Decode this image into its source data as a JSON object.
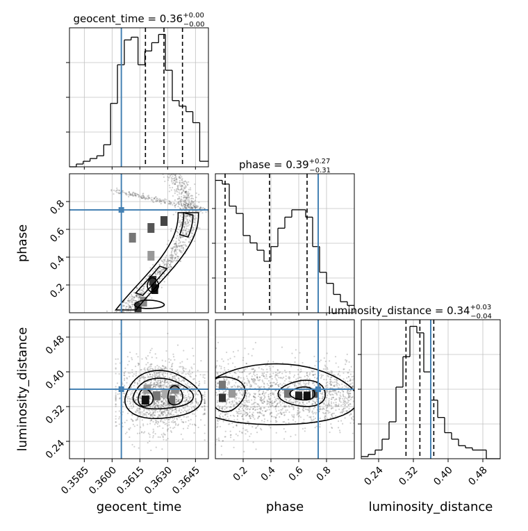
{
  "chart_data": {
    "type": "corner",
    "parameters": [
      {
        "name": "geocent_time",
        "axis_label": "geocent_time",
        "title": {
          "main": "geocent_time = 0.36",
          "plus": "+0.00",
          "minus": "−0.00"
        },
        "range": [
          0.3577,
          0.3652
        ],
        "ticks": [
          0.3585,
          0.36,
          0.3615,
          0.363,
          0.3645
        ],
        "tick_labels": [
          "0.3585",
          "0.3600",
          "0.3615",
          "0.3630",
          "0.3645"
        ],
        "injection": 0.3605,
        "quantiles": [
          0.3618,
          0.3628,
          0.3638
        ],
        "hist_edges": [
          0.3577,
          0.35807,
          0.35844,
          0.35881,
          0.35918,
          0.35955,
          0.35992,
          0.36029,
          0.36066,
          0.36103,
          0.3614,
          0.36177,
          0.36214,
          0.36251,
          0.36288,
          0.36325,
          0.36362,
          0.36399,
          0.36436,
          0.36473,
          0.3652
        ],
        "hist_counts": [
          0,
          1,
          2,
          3,
          4,
          8,
          23,
          37,
          46,
          47,
          37,
          42,
          45,
          48,
          35,
          24,
          22,
          20,
          16,
          2
        ]
      },
      {
        "name": "phase",
        "axis_label": "phase",
        "title": {
          "main": "phase = 0.39",
          "plus": "+0.27",
          "minus": "−0.31"
        },
        "range": [
          0.0,
          1.0
        ],
        "ticks": [
          0.2,
          0.4,
          0.6,
          0.8
        ],
        "tick_labels": [
          "0.2",
          "0.4",
          "0.6",
          "0.8"
        ],
        "injection": 0.74,
        "quantiles": [
          0.07,
          0.39,
          0.66
        ],
        "hist_edges": [
          0.0,
          0.05,
          0.1,
          0.15,
          0.2,
          0.25,
          0.3,
          0.35,
          0.4,
          0.45,
          0.5,
          0.55,
          0.6,
          0.65,
          0.7,
          0.75,
          0.8,
          0.85,
          0.9,
          0.95,
          1.0
        ],
        "hist_counts": [
          36,
          35,
          29,
          27,
          21,
          19,
          17,
          14,
          18,
          23,
          26,
          28,
          28,
          26,
          18,
          11,
          8,
          5,
          3,
          2
        ]
      },
      {
        "name": "luminosity_distance",
        "axis_label": "luminosity_distance",
        "title": {
          "main": "luminosity_distance = 0.34",
          "plus": "+0.03",
          "minus": "−0.04"
        },
        "range": [
          0.2,
          0.52
        ],
        "ticks": [
          0.24,
          0.32,
          0.4,
          0.48
        ],
        "tick_labels": [
          "0.24",
          "0.32",
          "0.40",
          "0.48"
        ],
        "injection": 0.36,
        "quantiles": [
          0.303,
          0.335,
          0.367
        ],
        "hist_edges": [
          0.2,
          0.216,
          0.232,
          0.248,
          0.264,
          0.28,
          0.296,
          0.312,
          0.328,
          0.344,
          0.36,
          0.376,
          0.392,
          0.408,
          0.424,
          0.44,
          0.456,
          0.472,
          0.488,
          0.504,
          0.52
        ],
        "hist_counts": [
          1,
          2,
          4,
          9,
          17,
          33,
          47,
          61,
          58,
          40,
          27,
          19,
          12,
          9,
          6,
          5,
          4,
          4,
          0,
          0
        ]
      }
    ],
    "contours_2d": [
      {
        "x": "geocent_time",
        "y": "phase",
        "description": "S-shaped posterior ridge"
      },
      {
        "x": "geocent_time",
        "y": "luminosity_distance",
        "description": "elongated blob with two peaks"
      },
      {
        "x": "phase",
        "y": "luminosity_distance",
        "description": "two peaks near phase 0.05 and 0.6"
      }
    ],
    "colors": {
      "injection": "#4682b4",
      "histogram": "#000000",
      "grid": "#c0c0c0",
      "scatter": "#555555"
    },
    "grid": true
  }
}
